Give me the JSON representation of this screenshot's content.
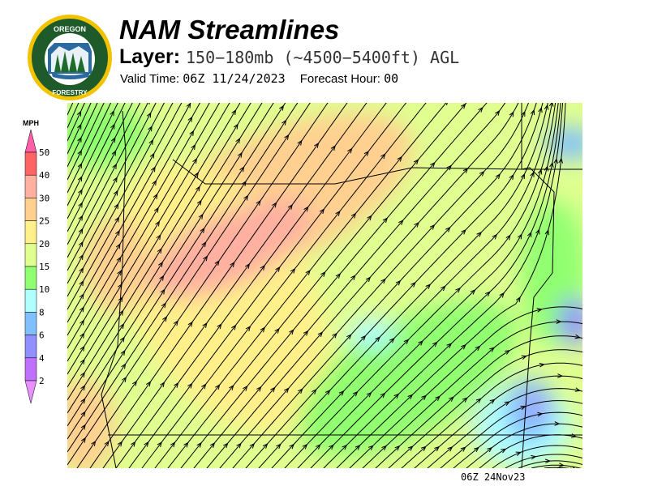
{
  "header": {
    "title": "NAM Streamlines",
    "layer_label": "Layer:",
    "layer_value": "150−180mb (~4500−5400ft) AGL",
    "valid_time_label": "Valid Time:",
    "valid_time_value": "06Z 11/24/2023",
    "forecast_hour_label": "Forecast Hour:",
    "forecast_hour_value": "00"
  },
  "logo": {
    "text_top": "OREGON",
    "text_bottom": "DEPARTMENT OF FORESTRY",
    "colors": {
      "ring": "#f2c300",
      "field": "#1e5a2a"
    }
  },
  "legend": {
    "unit": "MPH",
    "ticks": [
      "50",
      "40",
      "30",
      "25",
      "20",
      "15",
      "10",
      "8",
      "6",
      "4",
      "2"
    ],
    "colors": [
      "#ff5fa8",
      "#ff6464",
      "#ffb0a0",
      "#ffd090",
      "#fff08a",
      "#e0ff90",
      "#90ff70",
      "#b0ffff",
      "#80c0ff",
      "#9090ff",
      "#c070ff",
      "#e890ff"
    ]
  },
  "map": {
    "footer": "06Z 24Nov23"
  }
}
